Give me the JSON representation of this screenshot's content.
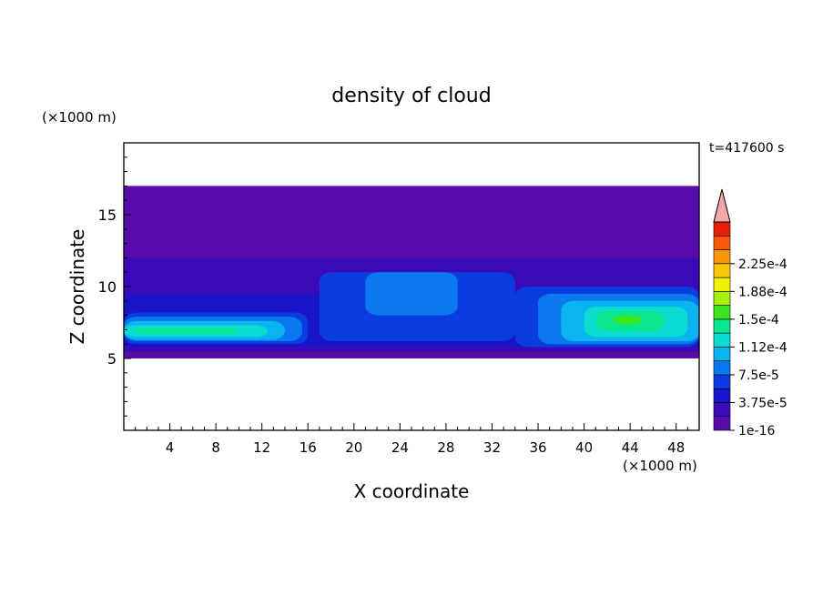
{
  "chart_data": {
    "type": "heatmap",
    "title": "density of cloud",
    "xlabel": "X coordinate",
    "ylabel": "Z coordinate",
    "x_unit": "(×1000 m)",
    "y_unit": "(×1000 m)",
    "time_label": "t=417600 s",
    "xlim": [
      0,
      50
    ],
    "ylim": [
      0,
      20
    ],
    "x_ticks": [
      4,
      8,
      12,
      16,
      20,
      24,
      28,
      32,
      36,
      40,
      44,
      48
    ],
    "y_ticks": [
      5,
      10,
      15
    ],
    "colorbar": {
      "labels": [
        "1e-16",
        "3.75e-5",
        "7.5e-5",
        "1.12e-4",
        "1.5e-4",
        "1.88e-4",
        "2.25e-4"
      ],
      "colors": [
        "#5a0aa8",
        "#3a0ab8",
        "#1a14c8",
        "#0a3ce0",
        "#0a78f0",
        "#0ab4f0",
        "#0adcd2",
        "#0ae68c",
        "#3ce61e",
        "#aaf00a",
        "#f0f00a",
        "#fac80a",
        "#fa960a",
        "#fa5a0a",
        "#e61e0a"
      ],
      "extend_color": "#f4a8a8"
    },
    "regions": [
      {
        "level": 0,
        "x0": 0.0,
        "x1": 50.0,
        "z0": 5.0,
        "z1": 17.0
      },
      {
        "level": 1,
        "x0": 0.0,
        "x1": 50.0,
        "z0": 5.5,
        "z1": 12.0
      },
      {
        "level": 2,
        "x0": 0.0,
        "x1": 50.0,
        "z0": 5.8,
        "z1": 9.5
      },
      {
        "level": 3,
        "x0": 0.0,
        "x1": 16.0,
        "z0": 6.0,
        "z1": 8.2
      },
      {
        "level": 3,
        "x0": 17.0,
        "x1": 34.0,
        "z0": 6.2,
        "z1": 11.0
      },
      {
        "level": 3,
        "x0": 34.0,
        "x1": 50.0,
        "z0": 5.8,
        "z1": 10.0
      },
      {
        "level": 4,
        "x0": 0.0,
        "x1": 15.5,
        "z0": 6.2,
        "z1": 7.9
      },
      {
        "level": 4,
        "x0": 21.0,
        "x1": 29.0,
        "z0": 8.0,
        "z1": 11.0
      },
      {
        "level": 4,
        "x0": 36.0,
        "x1": 50.0,
        "z0": 6.0,
        "z1": 9.5
      },
      {
        "level": 5,
        "x0": 0.0,
        "x1": 14.0,
        "z0": 6.3,
        "z1": 7.6
      },
      {
        "level": 5,
        "x0": 38.0,
        "x1": 50.0,
        "z0": 6.2,
        "z1": 9.0
      },
      {
        "level": 6,
        "x0": 0.0,
        "x1": 12.5,
        "z0": 6.5,
        "z1": 7.3
      },
      {
        "level": 6,
        "x0": 40.0,
        "x1": 49.0,
        "z0": 6.5,
        "z1": 8.6
      },
      {
        "level": 7,
        "x0": 1.0,
        "x1": 10.0,
        "z0": 6.7,
        "z1": 7.1
      },
      {
        "level": 7,
        "x0": 41.0,
        "x1": 47.0,
        "z0": 6.9,
        "z1": 8.3
      },
      {
        "level": 8,
        "x0": 42.5,
        "x1": 45.0,
        "z0": 7.4,
        "z1": 8.0
      }
    ]
  }
}
